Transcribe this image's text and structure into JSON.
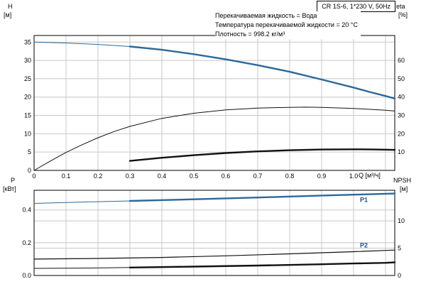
{
  "header": {
    "pump_title": "CR 1S-6, 1*230 V, 50Hz",
    "annotations": [
      "Перекачиваемая жидкость = Вода",
      "Температура перекачиваемой жидкости = 20 °C",
      "Плотность = 998.2 кг/м³"
    ]
  },
  "axis_corner_labels": {
    "h": "H",
    "h_unit": "[м]",
    "eta": "eta",
    "eta_unit": "[%]",
    "p": "P",
    "p_unit": "[кВт]",
    "npsh": "NPSH",
    "npsh_unit": "[м]",
    "q": "Q [м³/ч]"
  },
  "colors": {
    "curve_blue": "#2d6899",
    "curve_black": "#111111",
    "label_blue": "#1a4f8a",
    "grid": "#c8c8c8",
    "border": "#000000"
  },
  "chart_data": [
    {
      "type": "line",
      "title": "CR 1S-6, 1*230 V, 50Hz — Q/H and efficiency curves",
      "x_axis": {
        "label": "Q [м³/ч]",
        "min": 0,
        "max": 1.129,
        "ticks": [
          0,
          0.1,
          0.2,
          0.3,
          0.4,
          0.5,
          0.6,
          0.7,
          0.8,
          0.9,
          1.0
        ],
        "tick_labels": [
          "0",
          "0.1",
          "0.2",
          "0.3",
          "0.4",
          "0.5",
          "0.6",
          "0.7",
          "0.8",
          "0.9",
          "1.0"
        ],
        "gridlines": [
          0.1,
          0.2,
          0.3,
          0.4,
          0.5,
          0.6,
          0.7,
          0.8,
          0.9,
          1.0,
          1.1
        ],
        "show_tick_labels": true
      },
      "y_left": {
        "label": "H [м]",
        "min": 0,
        "max": 36.8,
        "ticks": [
          0,
          5,
          10,
          15,
          20,
          25,
          30,
          35
        ],
        "tick_labels": [
          "0",
          "5",
          "10",
          "15",
          "20",
          "25",
          "30",
          "35"
        ],
        "gridlines": [
          5,
          10,
          15,
          20,
          25,
          30,
          35
        ]
      },
      "y_right": {
        "label": "eta [%]",
        "min": 0,
        "max": 73.6,
        "ticks": [
          10,
          20,
          30,
          40,
          50,
          60
        ],
        "tick_labels": [
          "10",
          "20",
          "30",
          "40",
          "50",
          "60"
        ],
        "gridlines": []
      },
      "series": [
        {
          "name": "H-thin",
          "axis": "left",
          "color": "#2d6899",
          "width": 1,
          "points": [
            [
              0,
              35
            ],
            [
              0.1,
              34.75
            ],
            [
              0.2,
              34.35
            ],
            [
              0.3,
              33.8
            ]
          ]
        },
        {
          "name": "H-thick",
          "axis": "left",
          "color": "#2d6899",
          "width": 2.4,
          "points": [
            [
              0.3,
              33.8
            ],
            [
              0.4,
              32.9
            ],
            [
              0.5,
              31.7
            ],
            [
              0.6,
              30.3
            ],
            [
              0.7,
              28.7
            ],
            [
              0.8,
              26.9
            ],
            [
              0.9,
              24.8
            ],
            [
              1.0,
              22.6
            ],
            [
              1.05,
              21.4
            ],
            [
              1.1,
              20.3
            ],
            [
              1.129,
              19.6
            ]
          ]
        },
        {
          "name": "eta-thin",
          "axis": "right",
          "color": "#111111",
          "width": 1,
          "points": [
            [
              0,
              0
            ],
            [
              0.05,
              5
            ],
            [
              0.1,
              9.8
            ],
            [
              0.15,
              14
            ],
            [
              0.2,
              17.8
            ],
            [
              0.25,
              21.2
            ],
            [
              0.3,
              24
            ],
            [
              0.4,
              28.4
            ],
            [
              0.5,
              31.2
            ],
            [
              0.6,
              33
            ],
            [
              0.7,
              34
            ],
            [
              0.8,
              34.4
            ],
            [
              0.85,
              34.5
            ],
            [
              0.9,
              34.4
            ],
            [
              1.0,
              33.8
            ],
            [
              1.1,
              32.8
            ],
            [
              1.129,
              32.4
            ]
          ]
        },
        {
          "name": "eta-thick",
          "axis": "right",
          "color": "#111111",
          "width": 2.4,
          "points": [
            [
              0.3,
              5.2
            ],
            [
              0.4,
              6.9
            ],
            [
              0.5,
              8.3
            ],
            [
              0.6,
              9.5
            ],
            [
              0.7,
              10.4
            ],
            [
              0.8,
              11.0
            ],
            [
              0.9,
              11.4
            ],
            [
              1.0,
              11.5
            ],
            [
              1.05,
              11.45
            ],
            [
              1.1,
              11.3
            ],
            [
              1.129,
              11.2
            ]
          ]
        }
      ],
      "labels": []
    },
    {
      "type": "line",
      "title": "Power and NPSH curves",
      "x_axis": {
        "label": "Q [м³/ч]",
        "min": 0,
        "max": 1.129,
        "ticks": [],
        "tick_labels": [],
        "gridlines": [
          0.1,
          0.2,
          0.3,
          0.4,
          0.5,
          0.6,
          0.7,
          0.8,
          0.9,
          1.0,
          1.1
        ],
        "show_tick_labels": false
      },
      "y_left": {
        "label": "P [кВт]",
        "min": 0,
        "max": 0.52,
        "ticks": [
          0,
          0.2,
          0.4
        ],
        "tick_labels": [
          "0.0",
          "0.2",
          "0.4"
        ],
        "gridlines": [
          0.2,
          0.4
        ]
      },
      "y_right": {
        "label": "NPSH [м]",
        "min": 0,
        "max": 15.6,
        "ticks": [
          0,
          5,
          10
        ],
        "tick_labels": [
          "0",
          "5",
          "10"
        ],
        "gridlines": [
          5,
          10
        ]
      },
      "series": [
        {
          "name": "P1-thin",
          "axis": "left",
          "color": "#2d6899",
          "width": 1,
          "points": [
            [
              0,
              0.44
            ],
            [
              0.15,
              0.448
            ],
            [
              0.3,
              0.455
            ]
          ]
        },
        {
          "name": "P1-thick",
          "axis": "left",
          "color": "#2d6899",
          "width": 2.4,
          "points": [
            [
              0.3,
              0.455
            ],
            [
              0.5,
              0.465
            ],
            [
              0.7,
              0.476
            ],
            [
              0.9,
              0.488
            ],
            [
              1.0,
              0.493
            ],
            [
              1.129,
              0.5
            ]
          ]
        },
        {
          "name": "P2",
          "axis": "left",
          "color": "#111111",
          "width": 1.2,
          "points": [
            [
              0,
              0.1
            ],
            [
              0.2,
              0.104
            ],
            [
              0.4,
              0.11
            ],
            [
              0.6,
              0.12
            ],
            [
              0.8,
              0.132
            ],
            [
              1.0,
              0.145
            ],
            [
              1.129,
              0.155
            ]
          ]
        },
        {
          "name": "NPSH-thin",
          "axis": "right",
          "color": "#111111",
          "width": 1,
          "points": [
            [
              0,
              1.3
            ],
            [
              0.15,
              1.35
            ],
            [
              0.3,
              1.45
            ]
          ]
        },
        {
          "name": "NPSH-thick",
          "axis": "right",
          "color": "#111111",
          "width": 2.4,
          "points": [
            [
              0.3,
              1.45
            ],
            [
              0.5,
              1.62
            ],
            [
              0.7,
              1.82
            ],
            [
              0.9,
              2.05
            ],
            [
              1.0,
              2.2
            ],
            [
              1.1,
              2.32
            ],
            [
              1.129,
              2.4
            ]
          ]
        }
      ],
      "labels": [
        {
          "text": "P1",
          "x": 1.02,
          "y": 0.448,
          "axis": "left",
          "color": "#1a4f8a"
        },
        {
          "text": "P2",
          "x": 1.02,
          "y": 0.172,
          "axis": "left",
          "color": "#1a4f8a"
        }
      ]
    }
  ]
}
